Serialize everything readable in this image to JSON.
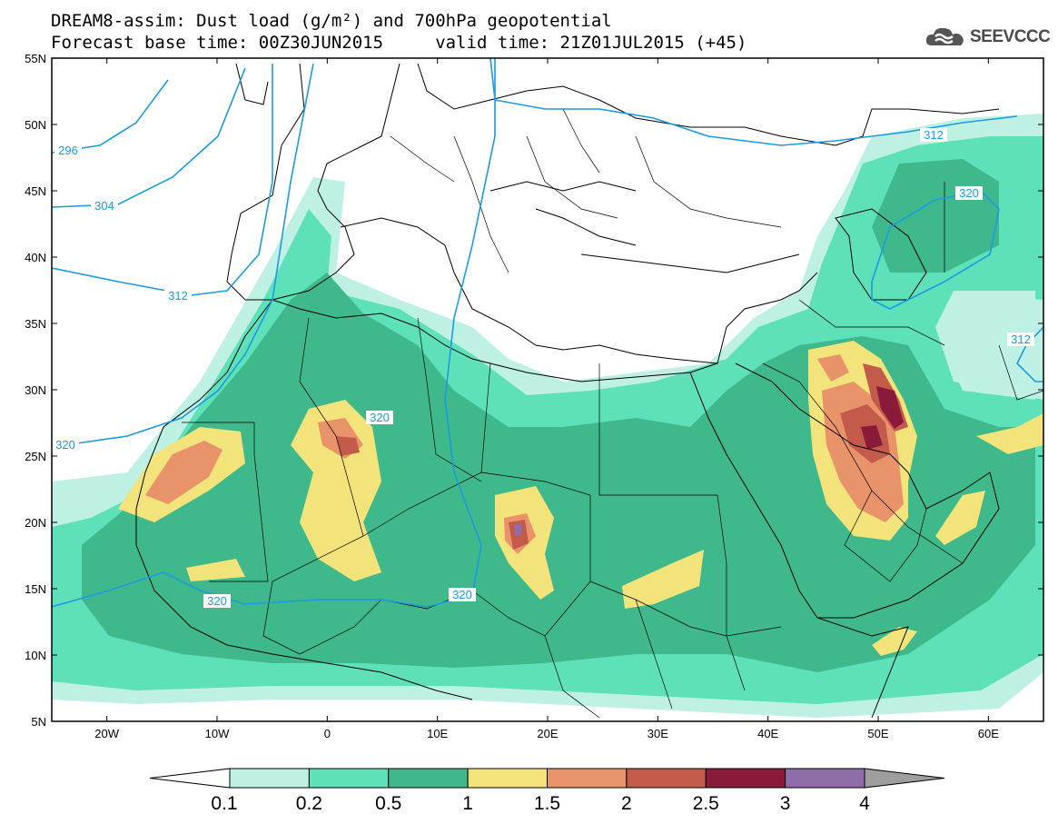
{
  "title": {
    "line1": "DREAM8-assim: Dust load (g/m²) and 700hPa geopotential",
    "line2": "Forecast base time: 00Z30JUN2015     valid time: 21Z01JUL2015 (+45)"
  },
  "logo": {
    "text": "SEEVCCC",
    "icon": "cloud-icon"
  },
  "axes": {
    "lat_labels": [
      "55N",
      "50N",
      "45N",
      "40N",
      "35N",
      "30N",
      "25N",
      "20N",
      "15N",
      "10N",
      "5N"
    ],
    "lat_values": [
      55,
      50,
      45,
      40,
      35,
      30,
      25,
      20,
      15,
      10,
      5
    ],
    "lon_labels": [
      "20W",
      "10W",
      "0",
      "10E",
      "20E",
      "30E",
      "40E",
      "50E",
      "60E"
    ],
    "lon_values": [
      -20,
      -10,
      0,
      10,
      20,
      30,
      40,
      50,
      60
    ],
    "lon_range": [
      -25,
      65
    ],
    "lat_range": [
      5,
      55
    ]
  },
  "colorbar": {
    "labels": [
      "0.1",
      "0.2",
      "0.5",
      "1",
      "1.5",
      "2",
      "2.5",
      "3",
      "4"
    ],
    "colors": [
      "#bff0e4",
      "#5ee1b8",
      "#3fb88c",
      "#f2e37a",
      "#e8936a",
      "#c45a4a",
      "#8a1a3a",
      "#8f6ca8"
    ],
    "extend_low_color": "#ffffff",
    "extend_high_color": "#9e9e9e"
  },
  "contours": {
    "color": "#1b9be0",
    "labels": [
      "296",
      "304",
      "312",
      "320",
      "320",
      "320",
      "320",
      "312",
      "312",
      "320"
    ]
  }
}
